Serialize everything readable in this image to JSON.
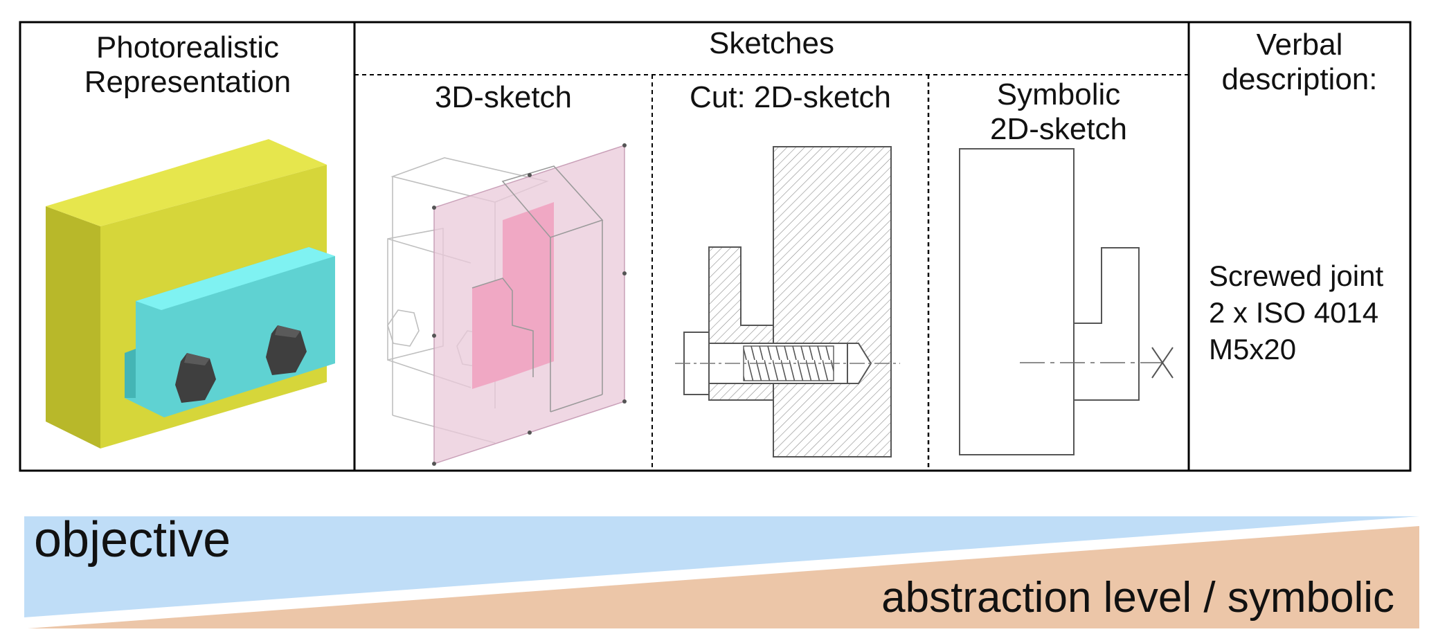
{
  "table": {
    "photorealistic_header": [
      "Photorealistic",
      "Representation"
    ],
    "sketches_header": "Sketches",
    "sketch_3d_header": "3D-sketch",
    "sketch_cut_header": "Cut: 2D-sketch",
    "sketch_symbolic_header": [
      "Symbolic",
      "2D-sketch"
    ],
    "verbal_header": [
      "Verbal",
      "description:"
    ],
    "verbal_body": [
      "Screwed joint",
      "2 x ISO 4014",
      "M5x20"
    ]
  },
  "scale_band": {
    "left_label": "objective",
    "right_label": "abstraction level / symbolic",
    "colors": {
      "upper_wedge": "#bfddf7",
      "lower_wedge": "#ecc6a8"
    }
  },
  "colors": {
    "block_yellow_front": "#d6d63a",
    "block_yellow_top": "#e6e64d",
    "block_yellow_side": "#b8b82a",
    "bracket_cyan_front": "#5fd2d2",
    "bracket_cyan_top": "#7ff2f2",
    "bolt_dark": "#3f3f3f",
    "cut_plane_pink": "#e9c9d9",
    "cut_section_pink": "#f0a8c4"
  },
  "icons": [
    "hex-bolt-head-icon",
    "screw-thread-icon",
    "axis-cross-icon"
  ]
}
